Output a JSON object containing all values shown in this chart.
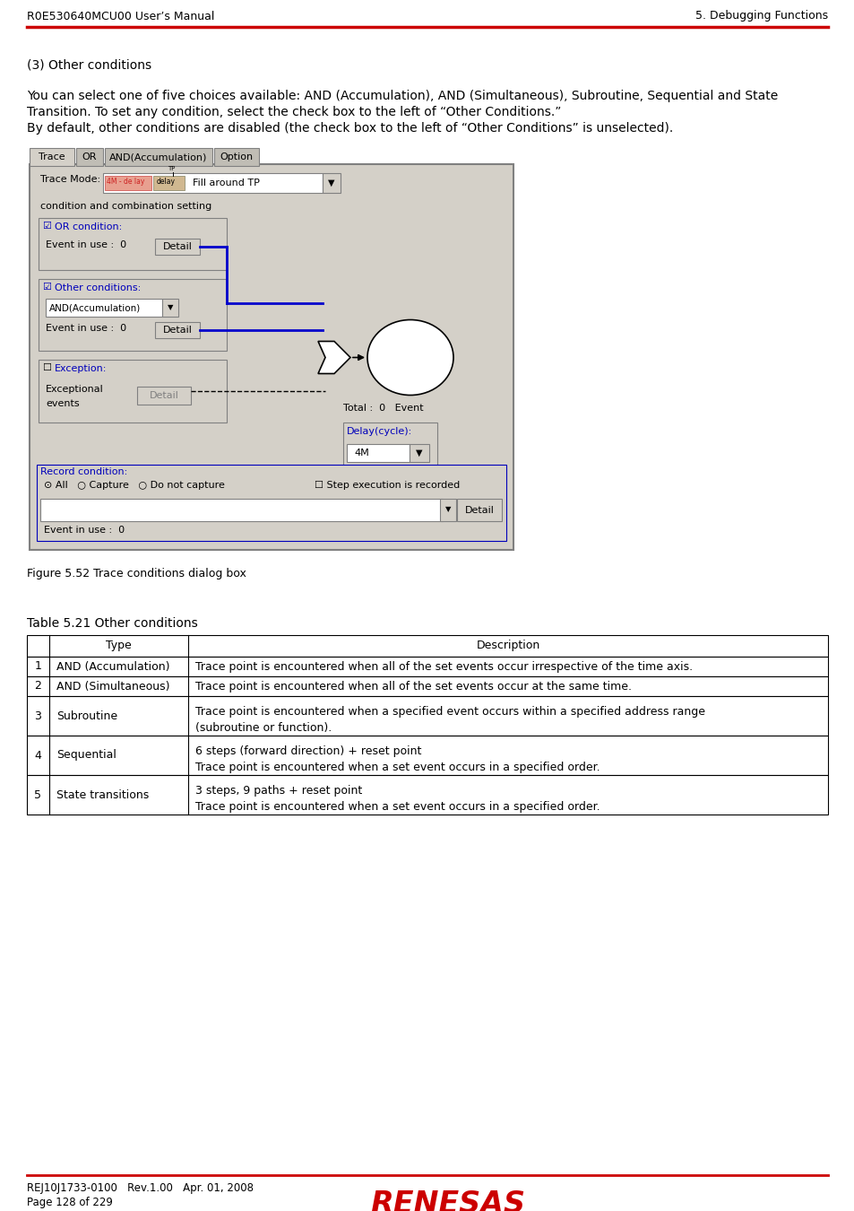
{
  "header_left": "R0E530640MCU00 User’s Manual",
  "header_right": "5. Debugging Functions",
  "header_line_color": "#cc0000",
  "section_title": "(3) Other conditions",
  "para1": "You can select one of five choices available: AND (Accumulation), AND (Simultaneous), Subroutine, Sequential and State",
  "para1b": "Transition. To set any condition, select the check box to the left of “Other Conditions.”",
  "para2": "By default, other conditions are disabled (the check box to the left of “Other Conditions” is unselected).",
  "figure_caption": "Figure 5.52 Trace conditions dialog box",
  "table_title": "Table 5.21 Other conditions",
  "table_col1": "Type",
  "table_col2": "Description",
  "table_rows": [
    [
      "1",
      "AND (Accumulation)",
      "Trace point is encountered when all of the set events occur irrespective of the time axis."
    ],
    [
      "2",
      "AND (Simultaneous)",
      "Trace point is encountered when all of the set events occur at the same time."
    ],
    [
      "3",
      "Subroutine",
      "Trace point is encountered when a specified event occurs within a specified address range\n(subroutine or function)."
    ],
    [
      "4",
      "Sequential",
      "6 steps (forward direction) + reset point\nTrace point is encountered when a set event occurs in a specified order."
    ],
    [
      "5",
      "State transitions",
      "3 steps, 9 paths + reset point\nTrace point is encountered when a set event occurs in a specified order."
    ]
  ],
  "footer_left1": "REJ10J1733-0100   Rev.1.00   Apr. 01, 2008",
  "footer_left2": "Page 128 of 229",
  "footer_line_color": "#cc0000",
  "bg_color": "#ffffff",
  "text_color": "#000000",
  "dialog_bg": "#d4d0c8",
  "blue_color": "#0000cc",
  "blue_label_color": "#0000bb"
}
